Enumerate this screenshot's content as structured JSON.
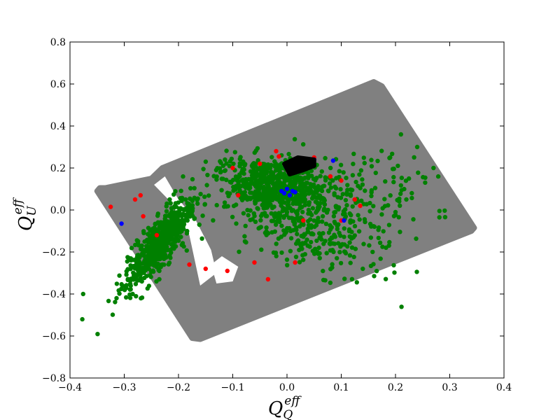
{
  "chart_data": {
    "type": "scatter",
    "title": "",
    "xlabel": {
      "base": "Q",
      "sub": "Q",
      "sup": "eff"
    },
    "ylabel": {
      "base": "Q",
      "sub": "U",
      "sup": "eff"
    },
    "xlim": [
      -0.4,
      0.4
    ],
    "ylim": [
      -0.8,
      0.8
    ],
    "xticks": [
      -0.4,
      -0.3,
      -0.2,
      -0.1,
      0.0,
      0.1,
      0.2,
      0.3,
      0.4
    ],
    "yticks": [
      -0.8,
      -0.6,
      -0.4,
      -0.2,
      0.0,
      0.2,
      0.4,
      0.6,
      0.8
    ],
    "xtick_labels": [
      "−0.4",
      "−0.3",
      "−0.2",
      "−0.1",
      "0.0",
      "0.1",
      "0.2",
      "0.3",
      "0.4"
    ],
    "ytick_labels": [
      "−0.8",
      "−0.6",
      "−0.4",
      "−0.2",
      "0.0",
      "0.2",
      "0.4",
      "0.6",
      "0.8"
    ],
    "grid": false,
    "legend": "none",
    "background_region": {
      "color": "#808080",
      "polygon": [
        [
          -0.345,
          0.105
        ],
        [
          -0.335,
          0.105
        ],
        [
          -0.25,
          0.15
        ],
        [
          -0.23,
          0.2
        ],
        [
          0.16,
          0.61
        ],
        [
          0.175,
          0.59
        ],
        [
          0.345,
          -0.085
        ],
        [
          0.34,
          -0.1
        ],
        [
          -0.16,
          -0.615
        ],
        [
          -0.175,
          -0.61
        ],
        [
          -0.35,
          0.09
        ]
      ],
      "gaps": [
        [
          [
            -0.245,
            0.12
          ],
          [
            -0.225,
            0.16
          ],
          [
            -0.2,
            0.05
          ],
          [
            -0.17,
            -0.04
          ],
          [
            -0.14,
            -0.19
          ],
          [
            -0.13,
            -0.3
          ],
          [
            -0.16,
            -0.36
          ],
          [
            -0.18,
            -0.12
          ],
          [
            -0.215,
            0.04
          ]
        ],
        [
          [
            -0.14,
            -0.26
          ],
          [
            -0.12,
            -0.22
          ],
          [
            -0.09,
            -0.27
          ],
          [
            -0.1,
            -0.34
          ],
          [
            -0.13,
            -0.35
          ]
        ]
      ]
    },
    "series": [
      {
        "color": "#008000",
        "clusters": [
          {
            "center": [
              -0.235,
              -0.16
            ],
            "spread": [
              0.018,
              0.11
            ],
            "count": 650,
            "rotate": -0.25
          },
          {
            "center": [
              -0.025,
              0.12
            ],
            "spread": [
              0.04,
              0.06
            ],
            "count": 520,
            "rotate": 0.35
          },
          {
            "center": [
              0.02,
              -0.06
            ],
            "spread": [
              0.06,
              0.14
            ],
            "count": 320,
            "rotate": 0.4
          },
          {
            "center": [
              0.09,
              0.05
            ],
            "spread": [
              0.06,
              0.11
            ],
            "count": 160,
            "rotate": 0.3
          },
          {
            "center": [
              0.17,
              0.12
            ],
            "spread": [
              0.05,
              0.08
            ],
            "count": 60,
            "rotate": 0.2
          }
        ],
        "points": [
          [
            0.27,
            0.2
          ],
          [
            0.22,
            0.05
          ],
          [
            0.2,
            -0.01
          ],
          [
            0.24,
            0.3
          ],
          [
            0.21,
            0.36
          ],
          [
            0.19,
            0.25
          ],
          [
            0.23,
            0.08
          ]
        ]
      },
      {
        "color": "#ff0000",
        "points": [
          [
            -0.325,
            0.015
          ],
          [
            -0.28,
            0.05
          ],
          [
            -0.27,
            0.07
          ],
          [
            -0.265,
            -0.03
          ],
          [
            -0.24,
            -0.12
          ],
          [
            -0.18,
            -0.26
          ],
          [
            -0.15,
            -0.28
          ],
          [
            -0.11,
            -0.29
          ],
          [
            -0.1,
            0.2
          ],
          [
            -0.09,
            0.07
          ],
          [
            -0.06,
            -0.25
          ],
          [
            -0.035,
            -0.33
          ],
          [
            -0.02,
            0.28
          ],
          [
            0.015,
            -0.25
          ],
          [
            0.05,
            0.25
          ],
          [
            0.08,
            0.16
          ],
          [
            0.1,
            0.14
          ],
          [
            0.1,
            -0.05
          ],
          [
            0.125,
            0.05
          ],
          [
            0.135,
            0.02
          ],
          [
            0.03,
            -0.05
          ],
          [
            -0.05,
            0.22
          ],
          [
            -0.015,
            0.255
          ]
        ]
      },
      {
        "color": "#0000ff",
        "points": [
          [
            -0.305,
            -0.065
          ],
          [
            -0.01,
            0.09
          ],
          [
            -0.005,
            0.08
          ],
          [
            0.0,
            0.1
          ],
          [
            0.005,
            0.07
          ],
          [
            0.01,
            0.09
          ],
          [
            0.015,
            0.085
          ],
          [
            -0.002,
            0.205
          ],
          [
            0.0,
            0.21
          ],
          [
            0.04,
            0.225
          ],
          [
            0.05,
            0.24
          ],
          [
            0.105,
            -0.05
          ],
          [
            0.085,
            0.235
          ]
        ]
      },
      {
        "color": "#000000",
        "polygon": [
          [
            -0.005,
            0.22
          ],
          [
            0.02,
            0.25
          ],
          [
            0.05,
            0.24
          ],
          [
            0.05,
            0.21
          ],
          [
            0.03,
            0.19
          ],
          [
            0.005,
            0.17
          ]
        ]
      }
    ]
  }
}
